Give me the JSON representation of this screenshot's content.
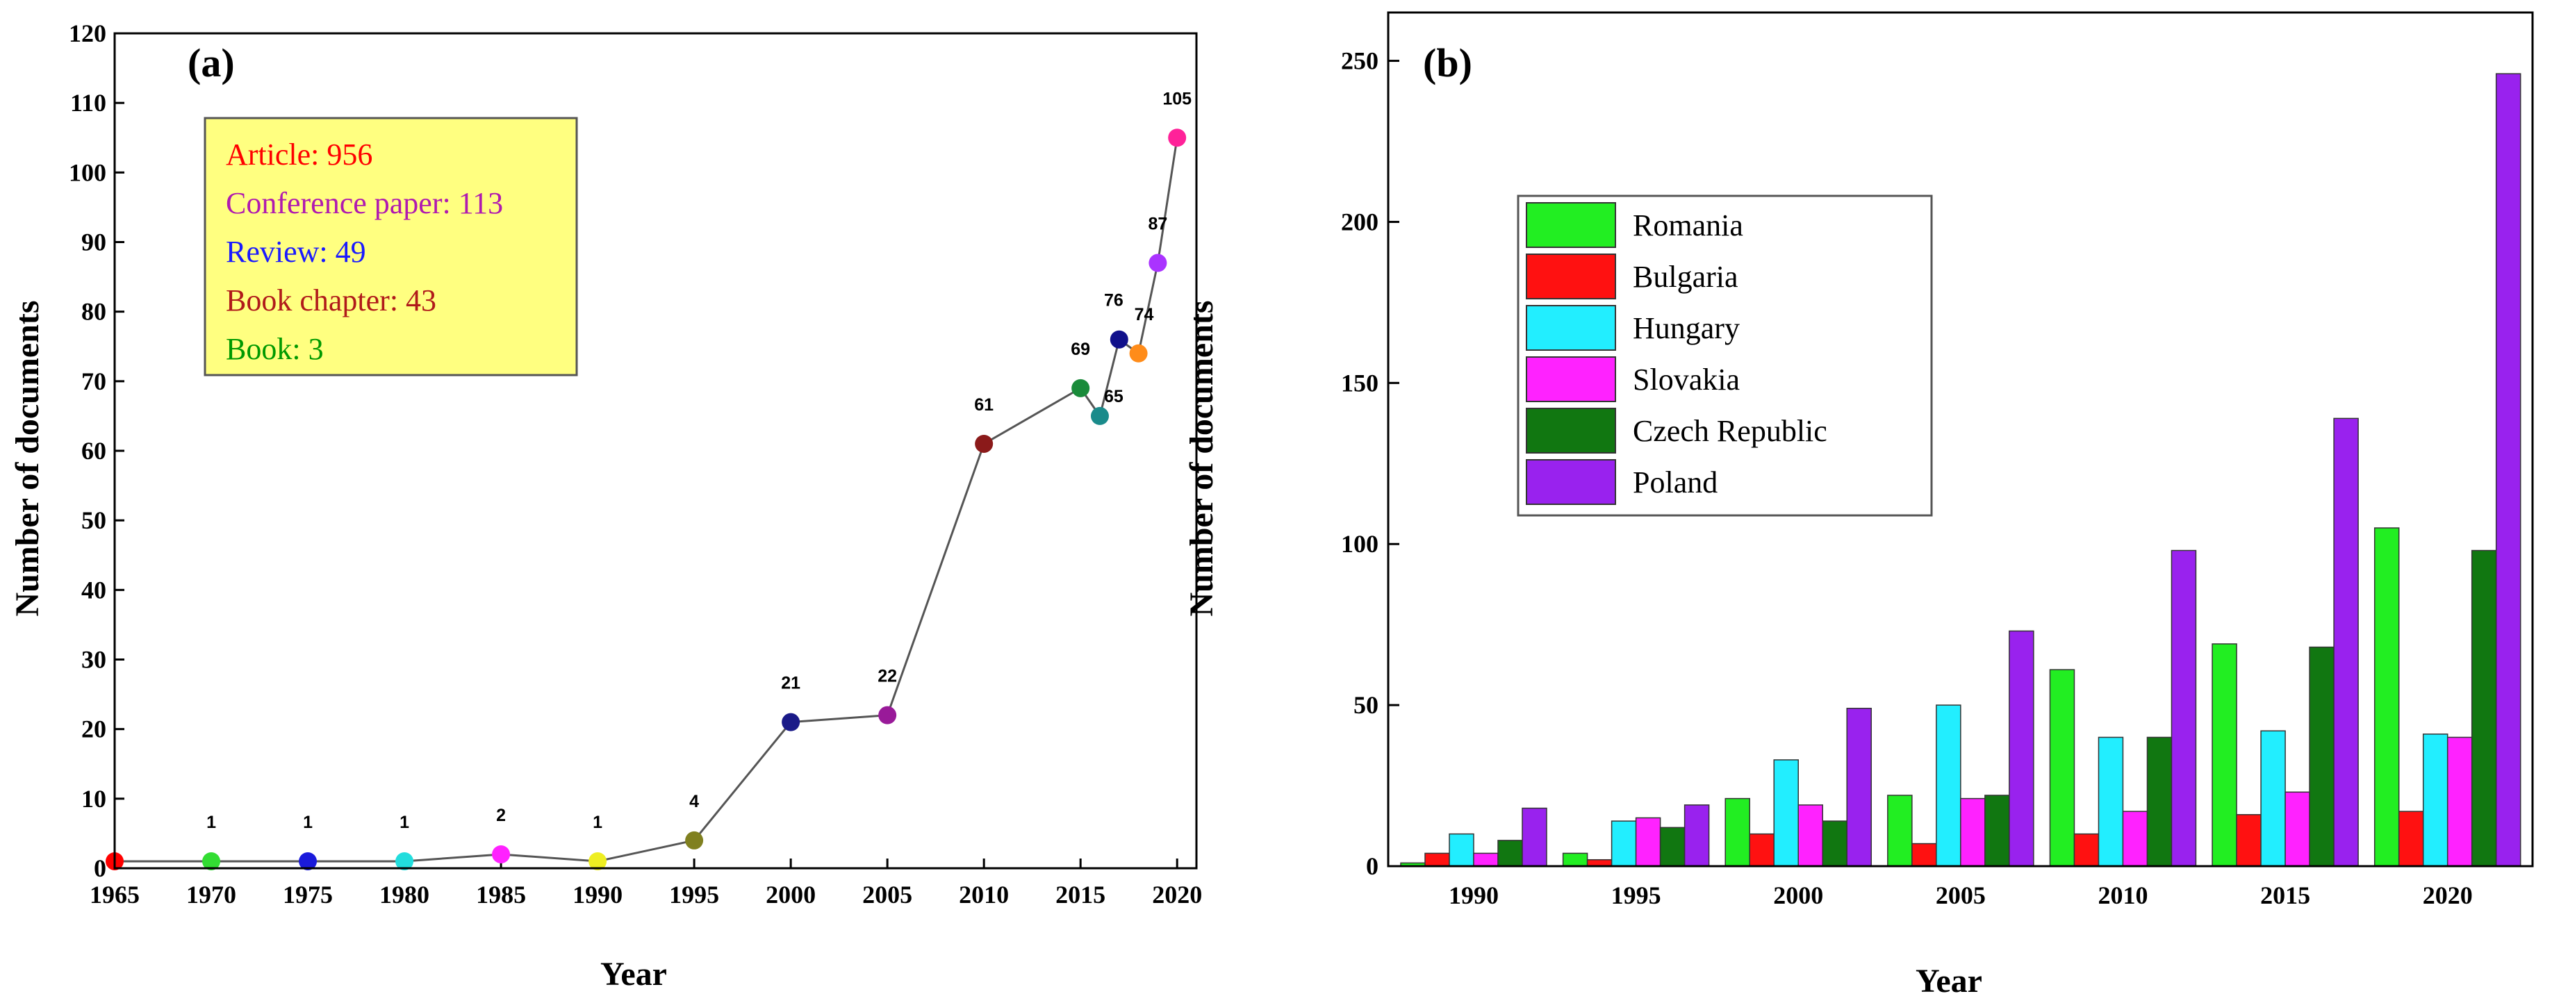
{
  "chart_data": [
    {
      "type": "line",
      "panel_label": "(a)",
      "title": "",
      "xlabel": "Year",
      "ylabel": "Number of documents",
      "xlim": [
        1965,
        2021
      ],
      "ylim": [
        0,
        120
      ],
      "xticks": [
        1965,
        1970,
        1975,
        1980,
        1985,
        1990,
        1995,
        2000,
        2005,
        2010,
        2015,
        2020
      ],
      "yticks": [
        0,
        10,
        20,
        30,
        40,
        50,
        60,
        70,
        80,
        90,
        100,
        110,
        120
      ],
      "points": [
        {
          "x": 1965,
          "y": 1,
          "color": "#ff0000",
          "label": ""
        },
        {
          "x": 1970,
          "y": 1,
          "color": "#33dd33",
          "label": "1"
        },
        {
          "x": 1975,
          "y": 1,
          "color": "#1a1adb",
          "label": "1"
        },
        {
          "x": 1980,
          "y": 1,
          "color": "#22dddd",
          "label": "1"
        },
        {
          "x": 1985,
          "y": 2,
          "color": "#ff22ff",
          "label": "2"
        },
        {
          "x": 1990,
          "y": 1,
          "color": "#eeee22",
          "label": "1"
        },
        {
          "x": 1995,
          "y": 4,
          "color": "#808020",
          "label": "4"
        },
        {
          "x": 2000,
          "y": 21,
          "color": "#1a1a88",
          "label": "21"
        },
        {
          "x": 2005,
          "y": 22,
          "color": "#991a99",
          "label": "22"
        },
        {
          "x": 2010,
          "y": 61,
          "color": "#8b1a1a",
          "label": "61"
        },
        {
          "x": 2015,
          "y": 69,
          "color": "#1a8b3a",
          "label": "69"
        },
        {
          "x": 2016,
          "y": 65,
          "color": "#1a8b8b",
          "label": "65"
        },
        {
          "x": 2017,
          "y": 76,
          "color": "#10108b",
          "label": "76"
        },
        {
          "x": 2018,
          "y": 74,
          "color": "#ff8c1a",
          "label": "74"
        },
        {
          "x": 2019,
          "y": 87,
          "color": "#aa33ff",
          "label": "87"
        },
        {
          "x": 2020,
          "y": 105,
          "color": "#ff2299",
          "label": "105"
        }
      ],
      "info_box": {
        "background": "#ffff80",
        "items": [
          {
            "text": "Article: 956",
            "color": "#ff0000"
          },
          {
            "text": "Conference paper: 113",
            "color": "#b01ab0"
          },
          {
            "text": "Review: 49",
            "color": "#1a1aff"
          },
          {
            "text": "Book chapter: 43",
            "color": "#b01a1a"
          },
          {
            "text": "Book: 3",
            "color": "#009900"
          }
        ]
      }
    },
    {
      "type": "bar",
      "panel_label": "(b)",
      "title": "",
      "xlabel": "Year",
      "ylabel": "Number of documents",
      "ylim": [
        0,
        265
      ],
      "yticks": [
        0,
        50,
        100,
        150,
        200,
        250
      ],
      "categories": [
        "1990",
        "1995",
        "2000",
        "2005",
        "2010",
        "2015",
        "2020"
      ],
      "series": [
        {
          "name": "Romania",
          "color": "#22ee22",
          "values": [
            1,
            4,
            21,
            22,
            61,
            69,
            105
          ]
        },
        {
          "name": "Bulgaria",
          "color": "#ff1111",
          "values": [
            4,
            2,
            10,
            7,
            10,
            16,
            17
          ]
        },
        {
          "name": "Hungary",
          "color": "#22eeff",
          "values": [
            10,
            14,
            33,
            50,
            40,
            42,
            41
          ]
        },
        {
          "name": "Slovakia",
          "color": "#ff22ff",
          "values": [
            4,
            15,
            19,
            21,
            17,
            23,
            40
          ]
        },
        {
          "name": "Czech Republic",
          "color": "#117711",
          "values": [
            8,
            12,
            14,
            22,
            40,
            68,
            98
          ]
        },
        {
          "name": "Poland",
          "color": "#9922ee",
          "values": [
            18,
            19,
            49,
            73,
            98,
            139,
            246
          ]
        }
      ],
      "legend_position": "top-left"
    }
  ]
}
